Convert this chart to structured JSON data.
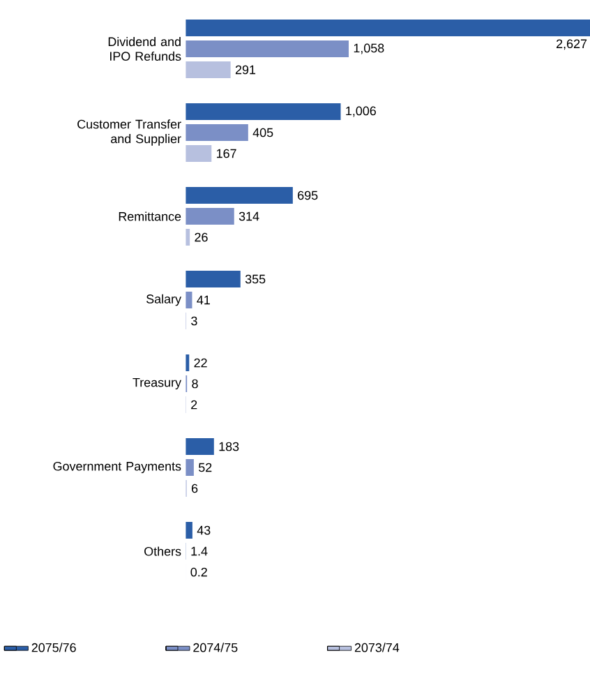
{
  "chart_data": {
    "type": "bar",
    "orientation": "horizontal",
    "categories": [
      "Dividend and IPO Refunds",
      "Customer Transfer and Supplier",
      "Remittance",
      "Salary",
      "Treasury",
      "Government Payments",
      "Others"
    ],
    "xlim": [
      0,
      2627
    ],
    "legend": "bottom",
    "series": [
      {
        "name": "2075/76",
        "color": "#2b5ea7",
        "values": [
          2627,
          1006,
          695,
          355,
          22,
          183,
          43
        ],
        "value_labels": [
          "2,627",
          "1,006",
          "695",
          "355",
          "22",
          "183",
          "43"
        ]
      },
      {
        "name": "2074/75",
        "color": "#7b8fc6",
        "values": [
          1058,
          405,
          314,
          41,
          8,
          52,
          1.4
        ],
        "value_labels": [
          "1,058",
          "405",
          "314",
          "41",
          "8",
          "52",
          "1.4"
        ]
      },
      {
        "name": "2073/74",
        "color": "#b7c0df",
        "values": [
          291,
          167,
          26,
          3,
          2,
          6,
          0.2
        ],
        "value_labels": [
          "291",
          "167",
          "26",
          "3",
          "2",
          "6",
          "0.2"
        ]
      }
    ]
  }
}
